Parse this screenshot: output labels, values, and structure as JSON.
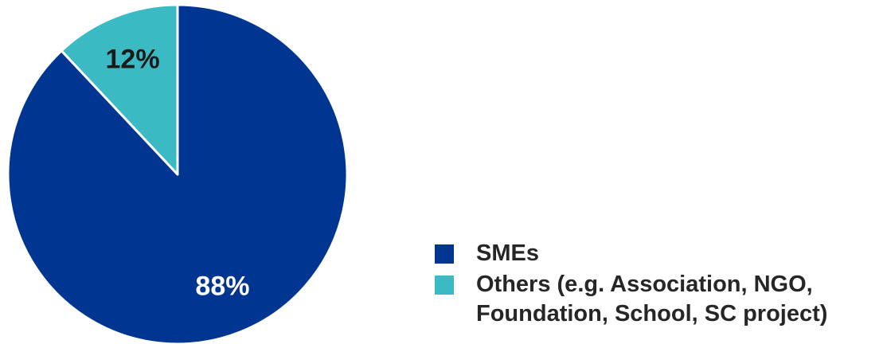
{
  "chart_data": {
    "type": "pie",
    "title": "",
    "categories": [
      "SMEs",
      "Others (e.g. Association, NGO, Foundation, School, SC project)"
    ],
    "values": [
      88,
      12
    ],
    "unit": "%",
    "data_labels": [
      "88%",
      "12%"
    ],
    "colors": [
      "#003591",
      "#3cbac4"
    ],
    "legend": "bottom-right",
    "start_angle_deg": 0,
    "direction": "clockwise"
  }
}
